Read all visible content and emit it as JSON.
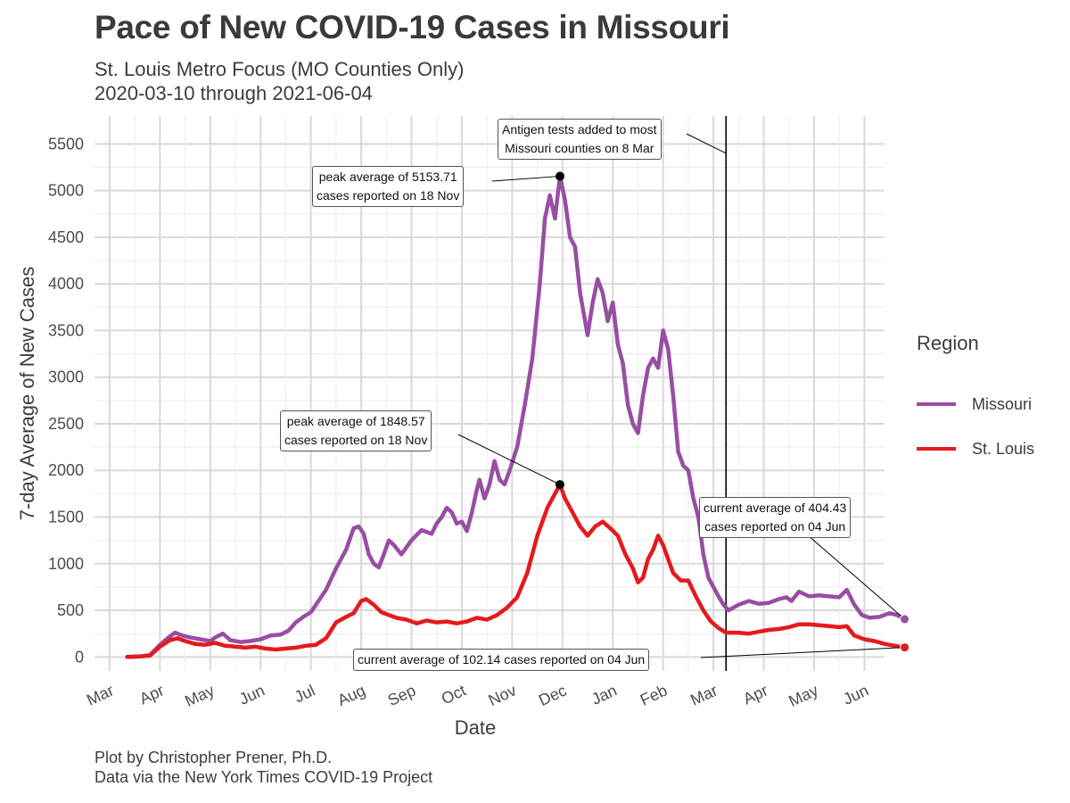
{
  "title": "Pace of New COVID-19 Cases in Missouri",
  "subtitle_line1": "St. Louis Metro Focus (MO Counties Only)",
  "subtitle_line2": "2020-03-10 through 2021-06-04",
  "caption_line1": "Plot by Christopher Prener, Ph.D.",
  "caption_line2": "Data via the New York Times COVID-19 Project",
  "legend": {
    "title": "Region",
    "items": [
      {
        "label": "Missouri",
        "color": "#984ea3"
      },
      {
        "label": "St. Louis",
        "color": "#e41a1c"
      }
    ]
  },
  "annotations": {
    "antigen_line1": "Antigen tests added to most",
    "antigen_line2": "Missouri counties on 8 Mar",
    "mo_peak_line1": "peak average of 5153.71",
    "mo_peak_line2": "cases reported on 18 Nov",
    "stl_peak_line1": "peak average of 1848.57",
    "stl_peak_line2": "cases reported on 18 Nov",
    "mo_current_line1": "current average of 404.43",
    "mo_current_line2": "cases reported on 04 Jun",
    "stl_current": "current average of 102.14 cases reported on 04 Jun"
  },
  "chart_data": {
    "type": "line",
    "title": "Pace of New COVID-19 Cases in Missouri",
    "xlabel": "Date",
    "ylabel": "7-day Average of New Cases",
    "x_ticks": [
      {
        "label": "Mar",
        "month": 0
      },
      {
        "label": "Apr",
        "month": 1
      },
      {
        "label": "May",
        "month": 2
      },
      {
        "label": "Jun",
        "month": 3
      },
      {
        "label": "Jul",
        "month": 4
      },
      {
        "label": "Aug",
        "month": 5
      },
      {
        "label": "Sep",
        "month": 6
      },
      {
        "label": "Oct",
        "month": 7
      },
      {
        "label": "Nov",
        "month": 8
      },
      {
        "label": "Dec",
        "month": 9
      },
      {
        "label": "Jan",
        "month": 10
      },
      {
        "label": "Feb",
        "month": 11
      },
      {
        "label": "Mar",
        "month": 12
      },
      {
        "label": "Apr",
        "month": 13
      },
      {
        "label": "May",
        "month": 14
      },
      {
        "label": "Jun",
        "month": 15
      }
    ],
    "y_ticks": [
      0,
      500,
      1000,
      1500,
      2000,
      2500,
      3000,
      3500,
      4000,
      4500,
      5000,
      5500
    ],
    "ylim": [
      -150,
      5800
    ],
    "xlim_months": [
      -0.3,
      15.4
    ],
    "vline_month": 12.25,
    "series": [
      {
        "name": "Missouri",
        "color": "#984ea3",
        "points": [
          [
            0.35,
            0
          ],
          [
            0.6,
            5
          ],
          [
            0.8,
            20
          ],
          [
            1.0,
            130
          ],
          [
            1.15,
            200
          ],
          [
            1.3,
            260
          ],
          [
            1.45,
            230
          ],
          [
            1.6,
            210
          ],
          [
            1.8,
            190
          ],
          [
            2.0,
            170
          ],
          [
            2.1,
            210
          ],
          [
            2.25,
            250
          ],
          [
            2.4,
            180
          ],
          [
            2.6,
            160
          ],
          [
            2.8,
            170
          ],
          [
            3.0,
            190
          ],
          [
            3.2,
            230
          ],
          [
            3.4,
            240
          ],
          [
            3.55,
            280
          ],
          [
            3.7,
            370
          ],
          [
            3.85,
            430
          ],
          [
            4.0,
            480
          ],
          [
            4.15,
            600
          ],
          [
            4.3,
            720
          ],
          [
            4.5,
            950
          ],
          [
            4.7,
            1150
          ],
          [
            4.85,
            1380
          ],
          [
            4.95,
            1400
          ],
          [
            5.05,
            1320
          ],
          [
            5.15,
            1100
          ],
          [
            5.25,
            1000
          ],
          [
            5.35,
            960
          ],
          [
            5.45,
            1100
          ],
          [
            5.55,
            1250
          ],
          [
            5.65,
            1200
          ],
          [
            5.8,
            1100
          ],
          [
            6.0,
            1250
          ],
          [
            6.2,
            1360
          ],
          [
            6.4,
            1320
          ],
          [
            6.5,
            1430
          ],
          [
            6.6,
            1500
          ],
          [
            6.7,
            1600
          ],
          [
            6.8,
            1550
          ],
          [
            6.9,
            1430
          ],
          [
            7.0,
            1450
          ],
          [
            7.1,
            1350
          ],
          [
            7.2,
            1550
          ],
          [
            7.3,
            1800
          ],
          [
            7.35,
            1900
          ],
          [
            7.45,
            1700
          ],
          [
            7.55,
            1850
          ],
          [
            7.65,
            2100
          ],
          [
            7.75,
            1900
          ],
          [
            7.85,
            1850
          ],
          [
            7.95,
            2000
          ],
          [
            8.1,
            2250
          ],
          [
            8.25,
            2700
          ],
          [
            8.4,
            3200
          ],
          [
            8.55,
            4000
          ],
          [
            8.65,
            4700
          ],
          [
            8.75,
            4950
          ],
          [
            8.85,
            4700
          ],
          [
            8.95,
            5153
          ],
          [
            9.05,
            4900
          ],
          [
            9.15,
            4500
          ],
          [
            9.25,
            4400
          ],
          [
            9.35,
            3900
          ],
          [
            9.45,
            3600
          ],
          [
            9.5,
            3450
          ],
          [
            9.6,
            3800
          ],
          [
            9.7,
            4050
          ],
          [
            9.8,
            3900
          ],
          [
            9.9,
            3600
          ],
          [
            10.0,
            3800
          ],
          [
            10.1,
            3350
          ],
          [
            10.2,
            3150
          ],
          [
            10.3,
            2700
          ],
          [
            10.4,
            2500
          ],
          [
            10.5,
            2400
          ],
          [
            10.6,
            2800
          ],
          [
            10.7,
            3100
          ],
          [
            10.8,
            3200
          ],
          [
            10.9,
            3100
          ],
          [
            11.0,
            3500
          ],
          [
            11.1,
            3300
          ],
          [
            11.2,
            2800
          ],
          [
            11.3,
            2200
          ],
          [
            11.4,
            2050
          ],
          [
            11.5,
            2000
          ],
          [
            11.6,
            1700
          ],
          [
            11.7,
            1500
          ],
          [
            11.8,
            1100
          ],
          [
            11.9,
            850
          ],
          [
            12.0,
            750
          ],
          [
            12.1,
            650
          ],
          [
            12.2,
            560
          ],
          [
            12.3,
            500
          ],
          [
            12.5,
            560
          ],
          [
            12.7,
            600
          ],
          [
            12.9,
            570
          ],
          [
            13.1,
            580
          ],
          [
            13.3,
            620
          ],
          [
            13.45,
            640
          ],
          [
            13.55,
            600
          ],
          [
            13.7,
            700
          ],
          [
            13.9,
            650
          ],
          [
            14.1,
            660
          ],
          [
            14.3,
            650
          ],
          [
            14.5,
            640
          ],
          [
            14.65,
            720
          ],
          [
            14.8,
            560
          ],
          [
            14.95,
            450
          ],
          [
            15.1,
            420
          ],
          [
            15.3,
            430
          ],
          [
            15.5,
            470
          ],
          [
            15.65,
            450
          ],
          [
            15.8,
            404
          ]
        ]
      },
      {
        "name": "St. Louis",
        "color": "#e41a1c",
        "points": [
          [
            0.35,
            0
          ],
          [
            0.6,
            5
          ],
          [
            0.8,
            15
          ],
          [
            1.0,
            110
          ],
          [
            1.2,
            180
          ],
          [
            1.35,
            200
          ],
          [
            1.5,
            170
          ],
          [
            1.7,
            140
          ],
          [
            1.9,
            130
          ],
          [
            2.1,
            150
          ],
          [
            2.3,
            120
          ],
          [
            2.5,
            110
          ],
          [
            2.7,
            100
          ],
          [
            2.9,
            110
          ],
          [
            3.1,
            90
          ],
          [
            3.3,
            80
          ],
          [
            3.5,
            90
          ],
          [
            3.7,
            100
          ],
          [
            3.9,
            120
          ],
          [
            4.1,
            130
          ],
          [
            4.3,
            200
          ],
          [
            4.5,
            370
          ],
          [
            4.7,
            430
          ],
          [
            4.85,
            470
          ],
          [
            5.0,
            600
          ],
          [
            5.1,
            620
          ],
          [
            5.25,
            560
          ],
          [
            5.4,
            480
          ],
          [
            5.55,
            450
          ],
          [
            5.7,
            420
          ],
          [
            5.9,
            400
          ],
          [
            6.1,
            360
          ],
          [
            6.3,
            390
          ],
          [
            6.5,
            370
          ],
          [
            6.7,
            380
          ],
          [
            6.9,
            360
          ],
          [
            7.1,
            380
          ],
          [
            7.3,
            420
          ],
          [
            7.5,
            400
          ],
          [
            7.7,
            450
          ],
          [
            7.9,
            530
          ],
          [
            8.1,
            640
          ],
          [
            8.3,
            900
          ],
          [
            8.5,
            1300
          ],
          [
            8.7,
            1600
          ],
          [
            8.85,
            1750
          ],
          [
            8.95,
            1848
          ],
          [
            9.05,
            1700
          ],
          [
            9.2,
            1550
          ],
          [
            9.35,
            1400
          ],
          [
            9.5,
            1300
          ],
          [
            9.65,
            1400
          ],
          [
            9.8,
            1450
          ],
          [
            9.95,
            1380
          ],
          [
            10.1,
            1300
          ],
          [
            10.25,
            1100
          ],
          [
            10.4,
            950
          ],
          [
            10.5,
            800
          ],
          [
            10.6,
            850
          ],
          [
            10.7,
            1050
          ],
          [
            10.8,
            1150
          ],
          [
            10.9,
            1300
          ],
          [
            11.0,
            1200
          ],
          [
            11.1,
            1050
          ],
          [
            11.2,
            900
          ],
          [
            11.35,
            820
          ],
          [
            11.5,
            820
          ],
          [
            11.65,
            650
          ],
          [
            11.8,
            500
          ],
          [
            11.95,
            380
          ],
          [
            12.1,
            310
          ],
          [
            12.25,
            260
          ],
          [
            12.5,
            260
          ],
          [
            12.7,
            250
          ],
          [
            12.9,
            270
          ],
          [
            13.1,
            290
          ],
          [
            13.3,
            300
          ],
          [
            13.5,
            320
          ],
          [
            13.7,
            350
          ],
          [
            13.9,
            350
          ],
          [
            14.1,
            340
          ],
          [
            14.3,
            330
          ],
          [
            14.5,
            320
          ],
          [
            14.65,
            330
          ],
          [
            14.8,
            230
          ],
          [
            15.0,
            190
          ],
          [
            15.2,
            170
          ],
          [
            15.4,
            140
          ],
          [
            15.6,
            120
          ],
          [
            15.8,
            102
          ]
        ]
      }
    ],
    "highlights": [
      {
        "series": "Missouri",
        "month": 8.95,
        "value": 5153.71
      },
      {
        "series": "St. Louis",
        "month": 8.95,
        "value": 1848.57
      },
      {
        "series": "Missouri",
        "month": 15.8,
        "value": 404.43
      },
      {
        "series": "St. Louis",
        "month": 15.8,
        "value": 102.14
      }
    ]
  }
}
